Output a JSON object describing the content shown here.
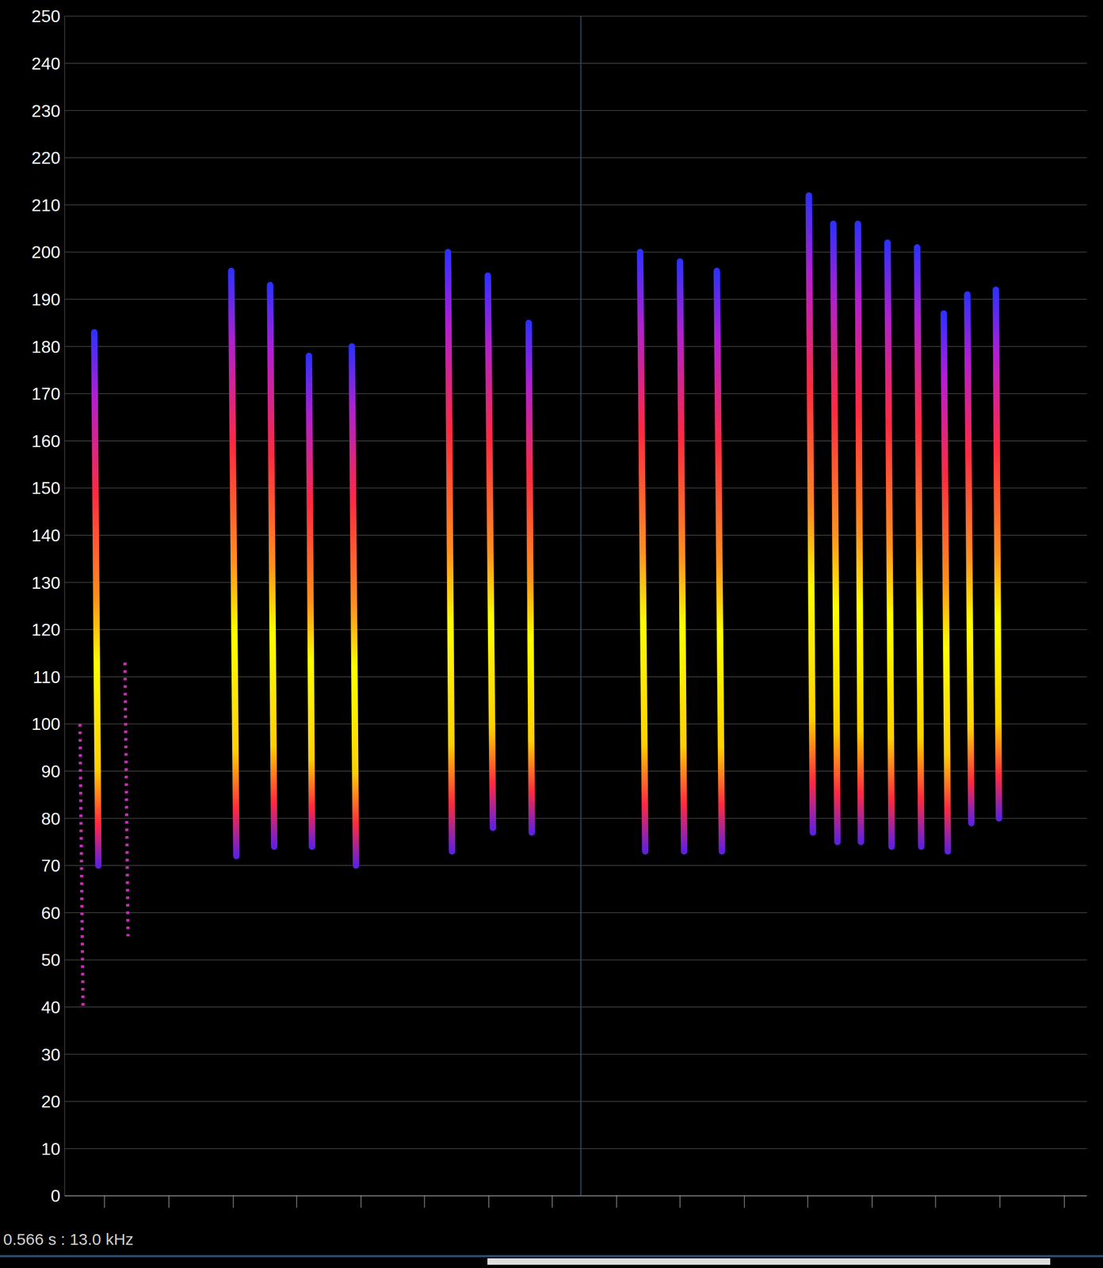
{
  "chart_data": {
    "type": "line",
    "status_text": "0.566 s : 13.0 kHz",
    "xlim": [
      0,
      100
    ],
    "xticks": [
      3.9,
      10.2,
      16.5,
      22.7,
      29.0,
      35.2,
      41.5,
      47.7,
      54.0,
      60.2,
      66.5,
      72.7,
      79.0,
      85.2,
      91.5,
      97.8
    ],
    "ylim": [
      0,
      250
    ],
    "yticks": [
      0,
      10,
      20,
      30,
      40,
      50,
      60,
      70,
      80,
      90,
      100,
      110,
      120,
      130,
      140,
      150,
      160,
      170,
      180,
      190,
      200,
      210,
      220,
      230,
      240,
      250
    ],
    "grid": true,
    "tick_labels": "y",
    "cursor_x": 50.5,
    "calls": [
      {
        "x_start": 2.9,
        "x_end": 3.3,
        "f_high": 183,
        "f_low": 70
      },
      {
        "x_start": 16.3,
        "x_end": 16.8,
        "f_high": 196,
        "f_low": 72
      },
      {
        "x_start": 20.1,
        "x_end": 20.5,
        "f_high": 193,
        "f_low": 74
      },
      {
        "x_start": 23.9,
        "x_end": 24.2,
        "f_high": 178,
        "f_low": 74
      },
      {
        "x_start": 28.1,
        "x_end": 28.5,
        "f_high": 180,
        "f_low": 70
      },
      {
        "x_start": 37.5,
        "x_end": 37.9,
        "f_high": 200,
        "f_low": 73
      },
      {
        "x_start": 41.4,
        "x_end": 41.9,
        "f_high": 195,
        "f_low": 78
      },
      {
        "x_start": 45.4,
        "x_end": 45.7,
        "f_high": 185,
        "f_low": 77
      },
      {
        "x_start": 56.3,
        "x_end": 56.8,
        "f_high": 200,
        "f_low": 73
      },
      {
        "x_start": 60.2,
        "x_end": 60.6,
        "f_high": 198,
        "f_low": 73
      },
      {
        "x_start": 63.8,
        "x_end": 64.3,
        "f_high": 196,
        "f_low": 73
      },
      {
        "x_start": 72.8,
        "x_end": 73.2,
        "f_high": 212,
        "f_low": 77
      },
      {
        "x_start": 75.2,
        "x_end": 75.6,
        "f_high": 206,
        "f_low": 75
      },
      {
        "x_start": 77.6,
        "x_end": 77.9,
        "f_high": 206,
        "f_low": 75
      },
      {
        "x_start": 80.5,
        "x_end": 80.9,
        "f_high": 202,
        "f_low": 74
      },
      {
        "x_start": 83.4,
        "x_end": 83.8,
        "f_high": 201,
        "f_low": 74
      },
      {
        "x_start": 86.0,
        "x_end": 86.4,
        "f_high": 187,
        "f_low": 73
      },
      {
        "x_start": 88.3,
        "x_end": 88.7,
        "f_high": 191,
        "f_low": 79
      },
      {
        "x_start": 91.1,
        "x_end": 91.4,
        "f_high": 192,
        "f_low": 80
      }
    ],
    "faint_calls": [
      {
        "x_start": 1.5,
        "x_end": 1.8,
        "f_high": 100,
        "f_low": 40
      },
      {
        "x_start": 5.9,
        "x_end": 6.2,
        "f_high": 113,
        "f_low": 55
      }
    ]
  }
}
